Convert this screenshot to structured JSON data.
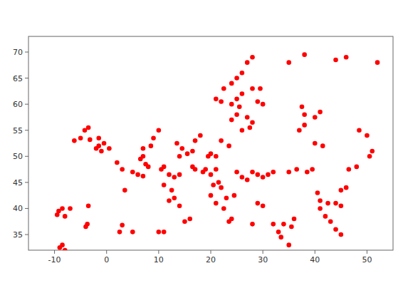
{
  "chart_data": {
    "type": "scatter",
    "x": [
      -8.5,
      -9.0,
      -8.0,
      -9.5,
      -8.0,
      -8.5,
      -7.0,
      -9.2,
      -3.5,
      -3.7,
      -4.0,
      3.0,
      -1.5,
      -3.2,
      -5.0,
      -6.2,
      -3.5,
      -4.2,
      -2.0,
      -1.0,
      0.5,
      -1.5,
      -0.5,
      2.5,
      5.0,
      3.5,
      2.0,
      3.0,
      5.0,
      6.0,
      7.0,
      6.5,
      7.0,
      7.5,
      8.0,
      7.0,
      8.5,
      9.0,
      10.0,
      10.5,
      11.0,
      12.0,
      13.0,
      14.0,
      11.0,
      12.5,
      13.0,
      12.0,
      14.0,
      10.0,
      11.0,
      15.0,
      16.0,
      13.5,
      14.5,
      16.5,
      14.0,
      15.5,
      16.5,
      17.0,
      18.5,
      17.0,
      18.0,
      19.0,
      20.0,
      21.0,
      19.5,
      20.0,
      21.0,
      20.5,
      21.5,
      22.0,
      22.5,
      23.5,
      24.0,
      23.0,
      24.5,
      20.0,
      21.0,
      22.0,
      23.5,
      24.0,
      25.0,
      25.5,
      24.0,
      22.0,
      21.0,
      22.5,
      24.0,
      25.0,
      26.0,
      27.0,
      28.0,
      25.0,
      26.0,
      28.0,
      29.0,
      30.0,
      29.5,
      27.0,
      28.0,
      26.0,
      27.5,
      25.0,
      26.0,
      27.0,
      28.0,
      29.0,
      30.0,
      31.0,
      32.0,
      29.0,
      30.0,
      28.0,
      32.0,
      33.0,
      35.0,
      33.5,
      34.0,
      35.5,
      36.0,
      35.0,
      36.5,
      37.0,
      38.0,
      37.5,
      38.0,
      40.0,
      41.0,
      40.0,
      41.5,
      38.5,
      39.5,
      40.5,
      41.0,
      41.0,
      42.5,
      42.0,
      43.0,
      44.0,
      45.0,
      44.0,
      45.0,
      45.0,
      46.0,
      46.5,
      48.0,
      48.5,
      50.0,
      50.5,
      51.0,
      52.0,
      44.0,
      46.0,
      38.0,
      35.0
    ],
    "values": [
      33.0,
      32.5,
      32.0,
      38.8,
      38.5,
      40.0,
      40.0,
      39.5,
      40.5,
      37.0,
      36.5,
      36.8,
      53.5,
      53.2,
      53.5,
      53.0,
      55.5,
      55.0,
      51.5,
      51.0,
      51.5,
      52.0,
      52.5,
      35.5,
      35.5,
      43.5,
      48.8,
      47.5,
      47.0,
      46.5,
      46.2,
      49.5,
      50.0,
      48.5,
      48.0,
      51.5,
      52.0,
      53.5,
      55.0,
      47.5,
      48.0,
      46.5,
      46.0,
      46.5,
      44.5,
      43.5,
      42.0,
      41.5,
      40.5,
      35.5,
      35.5,
      37.5,
      38.0,
      52.5,
      51.5,
      51.0,
      50.0,
      50.5,
      48.0,
      47.5,
      47.0,
      53.0,
      54.0,
      47.5,
      46.5,
      47.5,
      50.0,
      50.5,
      50.0,
      44.5,
      45.0,
      44.0,
      40.0,
      37.5,
      38.0,
      42.0,
      42.5,
      42.5,
      41.0,
      53.0,
      52.0,
      57.0,
      58.0,
      59.5,
      60.0,
      60.5,
      61.0,
      63.0,
      64.0,
      65.0,
      66.0,
      68.0,
      69.0,
      61.0,
      62.0,
      63.0,
      60.5,
      60.0,
      63.0,
      57.5,
      56.5,
      55.0,
      55.5,
      47.0,
      46.0,
      45.5,
      47.0,
      46.5,
      46.0,
      46.5,
      47.0,
      41.0,
      40.5,
      37.0,
      37.0,
      35.5,
      33.0,
      34.5,
      37.0,
      36.5,
      38.0,
      47.0,
      47.5,
      55.0,
      56.0,
      59.5,
      58.0,
      57.5,
      58.5,
      52.5,
      52.0,
      47.0,
      47.5,
      43.0,
      41.5,
      40.0,
      41.0,
      38.5,
      37.5,
      36.0,
      35.0,
      41.0,
      40.5,
      43.5,
      44.0,
      47.5,
      48.0,
      55.0,
      54.0,
      50.0,
      51.0,
      68.0,
      68.5,
      69.0,
      69.5,
      68.0
    ],
    "color": "#ff0000",
    "xlim": [
      -15,
      55
    ],
    "ylim": [
      32,
      73
    ],
    "xticks": [
      -10,
      0,
      10,
      20,
      30,
      40,
      50
    ],
    "yticks": [
      35,
      40,
      45,
      50,
      55,
      60,
      65,
      70
    ]
  }
}
